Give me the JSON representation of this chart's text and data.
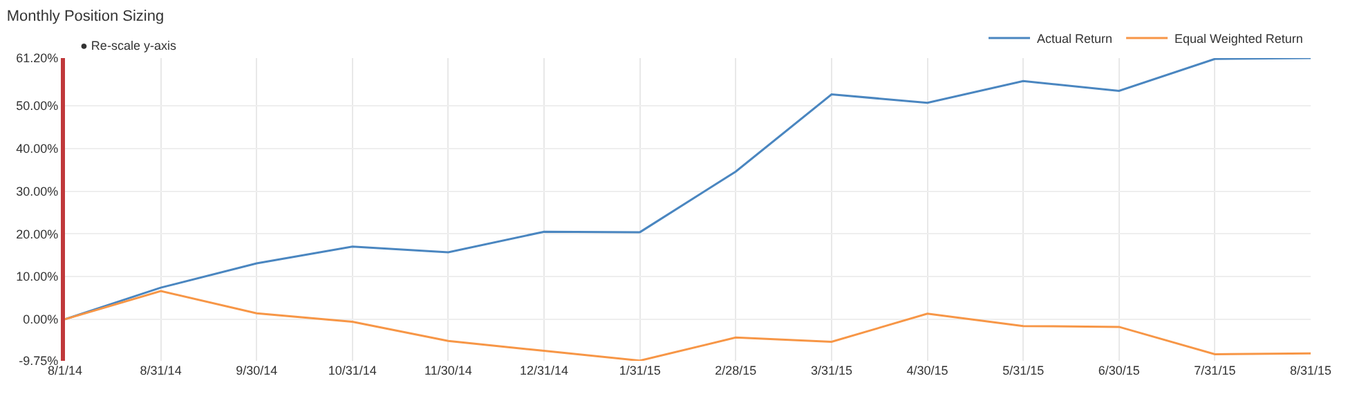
{
  "chart_data": {
    "type": "line",
    "title": "Monthly Position Sizing",
    "categories": [
      "8/1/14",
      "8/31/14",
      "9/30/14",
      "10/31/14",
      "11/30/14",
      "12/31/14",
      "1/31/15",
      "2/28/15",
      "3/31/15",
      "4/30/15",
      "5/31/15",
      "6/30/15",
      "7/31/15",
      "8/31/15"
    ],
    "series": [
      {
        "name": "Actual Return",
        "color": "#4a86c0",
        "values": [
          0,
          7.4,
          13.1,
          17.0,
          15.7,
          20.5,
          20.4,
          34.6,
          52.7,
          50.7,
          55.8,
          53.5,
          61.0,
          61.2
        ]
      },
      {
        "name": "Equal Weighted Return",
        "color": "#f79646",
        "values": [
          0,
          6.6,
          1.4,
          -0.6,
          -5.1,
          -7.4,
          -9.7,
          -4.3,
          -5.3,
          1.3,
          -1.6,
          -1.8,
          -8.2,
          -8.0
        ]
      }
    ],
    "ylim": [
      -9.75,
      61.2
    ],
    "yticks": [
      {
        "value": -9.75,
        "label": "-9.75%"
      },
      {
        "value": 0,
        "label": "0.00%"
      },
      {
        "value": 10,
        "label": "10.00%"
      },
      {
        "value": 20,
        "label": "20.00%"
      },
      {
        "value": 30,
        "label": "30.00%"
      },
      {
        "value": 40,
        "label": "40.00%"
      },
      {
        "value": 50,
        "label": "50.00%"
      },
      {
        "value": 61.2,
        "label": "61.20%"
      }
    ],
    "annotations": [
      "● Re-scale y-axis"
    ],
    "grid": true,
    "legend": "top right",
    "marker": "none",
    "line_style": "solid"
  }
}
